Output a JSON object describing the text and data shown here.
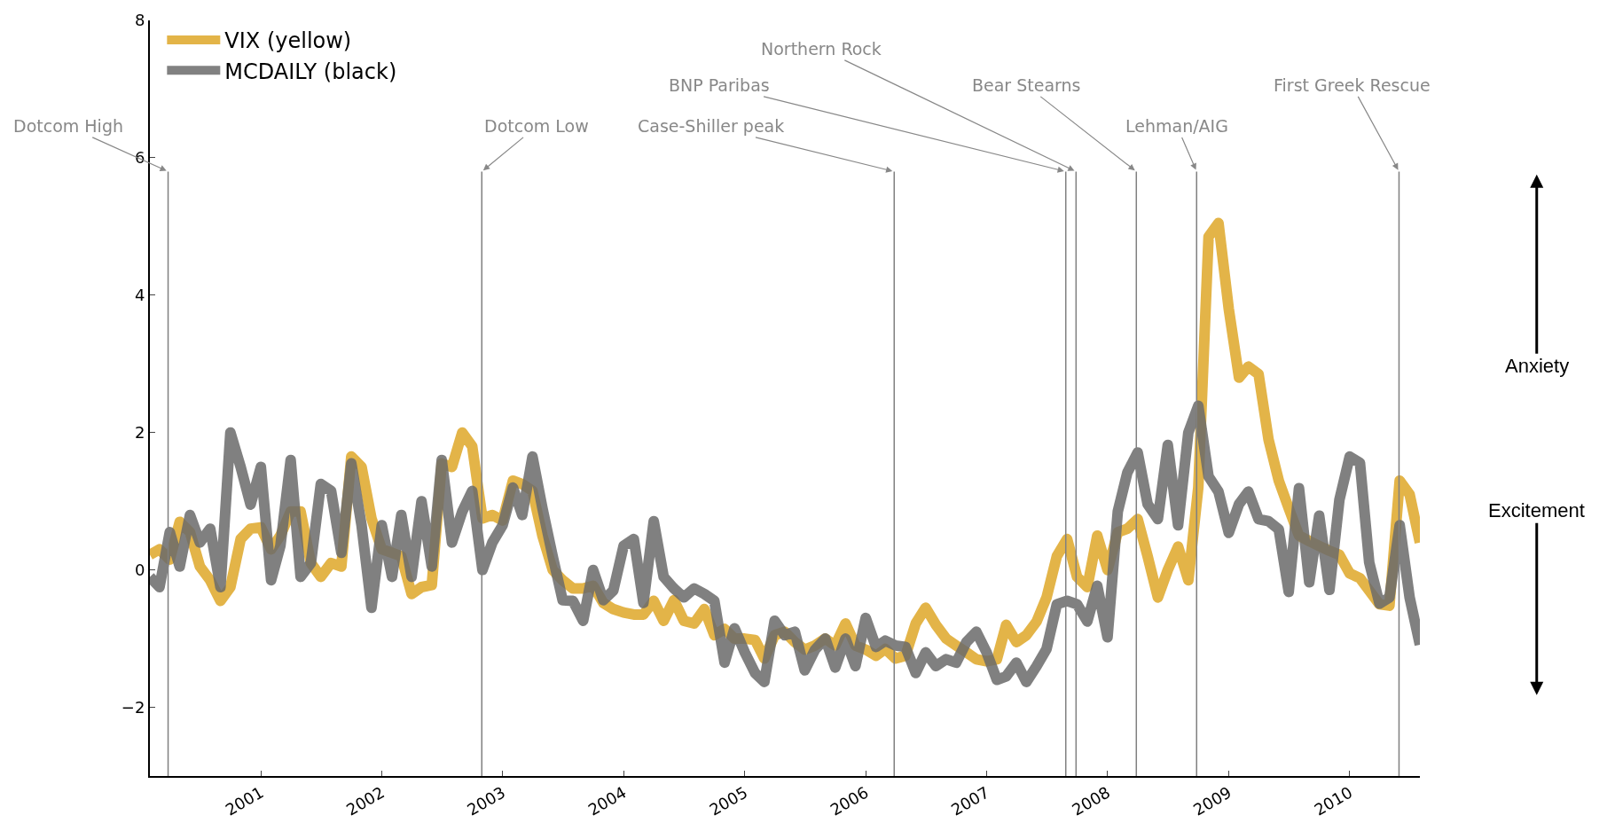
{
  "chart_data": {
    "type": "line",
    "x": [
      "2000-02",
      "2000-03",
      "2000-04",
      "2000-05",
      "2000-06",
      "2000-07",
      "2000-08",
      "2000-09",
      "2000-10",
      "2000-11",
      "2000-12",
      "2001-01",
      "2001-02",
      "2001-03",
      "2001-04",
      "2001-05",
      "2001-06",
      "2001-07",
      "2001-08",
      "2001-09",
      "2001-10",
      "2001-11",
      "2001-12",
      "2002-01",
      "2002-02",
      "2002-03",
      "2002-04",
      "2002-05",
      "2002-06",
      "2002-07",
      "2002-08",
      "2002-09",
      "2002-10",
      "2002-11",
      "2002-12",
      "2003-01",
      "2003-02",
      "2003-03",
      "2003-04",
      "2003-05",
      "2003-06",
      "2003-07",
      "2003-08",
      "2003-09",
      "2003-10",
      "2003-11",
      "2003-12",
      "2004-01",
      "2004-02",
      "2004-03",
      "2004-04",
      "2004-05",
      "2004-06",
      "2004-07",
      "2004-08",
      "2004-09",
      "2004-10",
      "2004-11",
      "2004-12",
      "2005-01",
      "2005-02",
      "2005-03",
      "2005-04",
      "2005-05",
      "2005-06",
      "2005-07",
      "2005-08",
      "2005-09",
      "2005-10",
      "2005-11",
      "2005-12",
      "2006-01",
      "2006-02",
      "2006-03",
      "2006-04",
      "2006-05",
      "2006-06",
      "2006-07",
      "2006-08",
      "2006-09",
      "2006-10",
      "2006-11",
      "2006-12",
      "2007-01",
      "2007-02",
      "2007-03",
      "2007-04",
      "2007-05",
      "2007-06",
      "2007-07",
      "2007-08",
      "2007-09",
      "2007-10",
      "2007-11",
      "2007-12",
      "2008-01",
      "2008-02",
      "2008-03",
      "2008-04",
      "2008-05",
      "2008-06",
      "2008-07",
      "2008-08",
      "2008-09",
      "2008-10",
      "2008-11",
      "2008-12",
      "2009-01",
      "2009-02",
      "2009-03",
      "2009-04",
      "2009-05",
      "2009-06",
      "2009-07",
      "2009-08",
      "2009-09",
      "2009-10",
      "2009-11",
      "2009-12",
      "2010-01",
      "2010-02",
      "2010-03",
      "2010-04",
      "2010-05",
      "2010-06",
      "2010-07",
      "2010-08"
    ],
    "series": [
      {
        "name": "VIX (yellow)",
        "color": "#e3b448",
        "values": [
          0.22,
          0.3,
          0.15,
          0.7,
          0.55,
          0.05,
          -0.15,
          -0.45,
          -0.25,
          0.45,
          0.6,
          0.62,
          0.3,
          0.5,
          0.85,
          0.85,
          0.1,
          -0.1,
          0.1,
          0.05,
          1.65,
          1.5,
          0.75,
          0.3,
          0.25,
          0.2,
          -0.35,
          -0.25,
          -0.22,
          1.55,
          1.5,
          2.0,
          1.8,
          0.75,
          0.8,
          0.72,
          1.3,
          1.25,
          1.15,
          0.5,
          0.0,
          -0.15,
          -0.27,
          -0.27,
          -0.23,
          -0.48,
          -0.57,
          -0.62,
          -0.65,
          -0.65,
          -0.45,
          -0.74,
          -0.44,
          -0.74,
          -0.78,
          -0.57,
          -0.95,
          -0.86,
          -1.0,
          -1.0,
          -1.02,
          -1.29,
          -0.95,
          -0.9,
          -1.05,
          -1.16,
          -1.1,
          -1.0,
          -1.1,
          -0.78,
          -1.1,
          -1.16,
          -1.25,
          -1.15,
          -1.29,
          -1.25,
          -0.78,
          -0.55,
          -0.8,
          -1.0,
          -1.1,
          -1.2,
          -1.3,
          -1.33,
          -1.3,
          -0.8,
          -1.05,
          -0.95,
          -0.75,
          -0.4,
          0.2,
          0.45,
          -0.1,
          -0.25,
          0.5,
          0.0,
          0.55,
          0.6,
          0.74,
          0.2,
          -0.4,
          0.0,
          0.34,
          -0.15,
          1.2,
          4.85,
          5.05,
          3.8,
          2.8,
          2.96,
          2.85,
          1.9,
          1.3,
          0.9,
          0.5,
          0.42,
          0.35,
          0.28,
          0.22,
          -0.05,
          -0.12,
          -0.3,
          -0.5,
          -0.52,
          1.3,
          1.1,
          0.4
        ]
      },
      {
        "name": "MCDAILY (black)",
        "color": "#6b6b6b",
        "values": [
          -0.1,
          -0.25,
          0.55,
          0.05,
          0.8,
          0.4,
          0.6,
          -0.25,
          2.0,
          1.5,
          0.95,
          1.5,
          -0.15,
          0.35,
          1.6,
          -0.1,
          0.1,
          1.25,
          1.15,
          0.25,
          1.55,
          0.65,
          -0.55,
          0.65,
          -0.1,
          0.8,
          -0.1,
          1.0,
          0.05,
          1.6,
          0.4,
          0.85,
          1.15,
          0.0,
          0.4,
          0.65,
          1.2,
          0.8,
          1.65,
          0.9,
          0.2,
          -0.44,
          -0.45,
          -0.74,
          0.0,
          -0.44,
          -0.3,
          0.35,
          0.45,
          -0.48,
          0.71,
          -0.1,
          -0.27,
          -0.4,
          -0.27,
          -0.35,
          -0.45,
          -1.35,
          -0.85,
          -1.2,
          -1.5,
          -1.63,
          -0.74,
          -0.95,
          -0.9,
          -1.46,
          -1.16,
          -1.0,
          -1.42,
          -1.0,
          -1.4,
          -0.7,
          -1.12,
          -1.03,
          -1.1,
          -1.12,
          -1.5,
          -1.2,
          -1.4,
          -1.3,
          -1.35,
          -1.05,
          -0.9,
          -1.2,
          -1.6,
          -1.55,
          -1.35,
          -1.63,
          -1.4,
          -1.15,
          -0.5,
          -0.45,
          -0.5,
          -0.75,
          -0.23,
          -0.98,
          0.85,
          1.42,
          1.71,
          0.96,
          0.74,
          1.82,
          0.65,
          2.0,
          2.39,
          1.36,
          1.14,
          0.54,
          0.96,
          1.14,
          0.74,
          0.71,
          0.59,
          -0.32,
          1.19,
          -0.18,
          0.79,
          -0.29,
          1.02,
          1.65,
          1.56,
          0.11,
          -0.49,
          -0.4,
          0.65,
          -0.4,
          -1.09
        ]
      }
    ],
    "xlim": [
      "2000-02",
      "2010-08"
    ],
    "xticks": [
      "2001",
      "2002",
      "2003",
      "2004",
      "2005",
      "2006",
      "2007",
      "2008",
      "2009",
      "2010"
    ],
    "ylim": [
      -3,
      8
    ],
    "yticks": [
      {
        "value": -2,
        "label": "−2"
      },
      0,
      2,
      4,
      6,
      8
    ],
    "ref_lines": [
      {
        "axis": "x",
        "value": "2000-03-27",
        "label": "Dotcom High"
      },
      {
        "axis": "x",
        "value": "2002-10-30",
        "label": "Dotcom Low"
      },
      {
        "axis": "x",
        "value": "2006-03-28",
        "label": "Case-Shiller peak"
      },
      {
        "axis": "x",
        "value": "2007-08-28",
        "label": "BNP Paribas"
      },
      {
        "axis": "x",
        "value": "2007-09-28",
        "label": "Northern Rock"
      },
      {
        "axis": "x",
        "value": "2008-03-28",
        "label": "Bear Stearns"
      },
      {
        "axis": "x",
        "value": "2008-09-26",
        "label": "Lehman/AIG"
      },
      {
        "axis": "x",
        "value": "2010-05-30",
        "label": "First Greek Rescue"
      }
    ],
    "annotations": [
      "Anxiety",
      "Excitement"
    ],
    "legend": "top left",
    "grid": false,
    "line_style": "solid",
    "marker": "none"
  }
}
